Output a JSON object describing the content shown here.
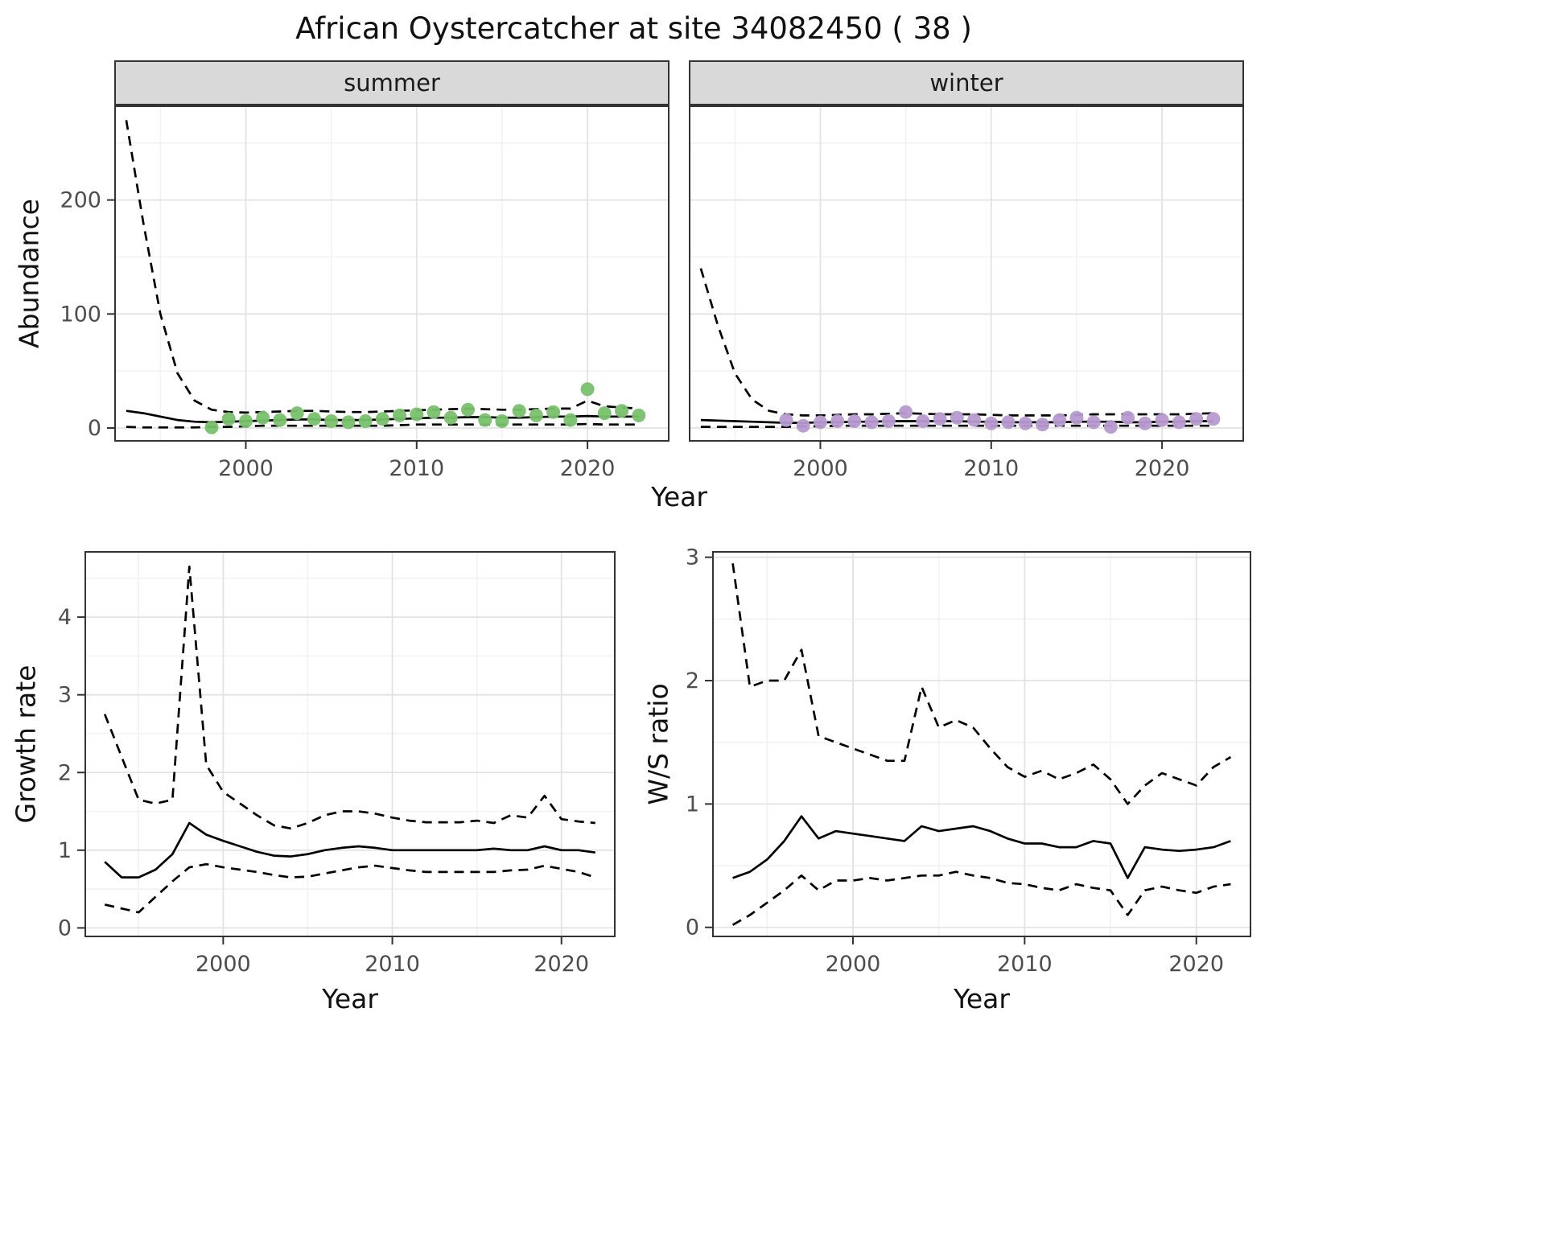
{
  "title": "African Oystercatcher at site 34082450 ( 38 )",
  "labels": {
    "year": "Year",
    "abundance": "Abundance",
    "growth": "Growth rate",
    "ws": "W/S ratio"
  },
  "facets": [
    "summer",
    "winter"
  ],
  "colors": {
    "summer_points": "#78c16c",
    "winter_points": "#b79ad1",
    "line": "#000000",
    "strip_bg": "#d9d9d9"
  },
  "chart_data": [
    {
      "id": "abundance-summer",
      "type": "line",
      "facet": "summer",
      "xlabel": "Year",
      "ylabel": "Abundance",
      "x_domain": [
        1992.3,
        2024.8
      ],
      "y_domain": [
        -12,
        283
      ],
      "x_ticks": [
        2000,
        2010,
        2020
      ],
      "y_ticks": [
        0,
        100,
        200
      ],
      "x_minor": [
        1995,
        2005,
        2015
      ],
      "y_minor": [
        50,
        150,
        250
      ],
      "show_y_labels": true,
      "series": [
        {
          "name": "upper_95ci",
          "style": "dashed",
          "x": [
            1993,
            1994,
            1995,
            1996,
            1997,
            1998,
            1999,
            2000,
            2001,
            2002,
            2003,
            2004,
            2005,
            2006,
            2007,
            2008,
            2009,
            2010,
            2011,
            2012,
            2013,
            2014,
            2015,
            2016,
            2017,
            2018,
            2019,
            2020,
            2021,
            2022,
            2023
          ],
          "y": [
            270,
            180,
            100,
            48,
            24,
            16,
            14,
            13.5,
            14,
            14.5,
            15,
            15,
            14.5,
            14,
            14,
            14.5,
            15,
            15.5,
            16,
            16.5,
            17,
            16.5,
            16,
            16,
            16.5,
            17,
            17,
            24,
            19,
            18,
            17
          ]
        },
        {
          "name": "modelled_fit",
          "style": "solid",
          "x": [
            1993,
            1994,
            1995,
            1996,
            1997,
            1998,
            1999,
            2000,
            2001,
            2002,
            2003,
            2004,
            2005,
            2006,
            2007,
            2008,
            2009,
            2010,
            2011,
            2012,
            2013,
            2014,
            2015,
            2016,
            2017,
            2018,
            2019,
            2020,
            2021,
            2022,
            2023
          ],
          "y": [
            15,
            13,
            10,
            7,
            5.5,
            5,
            5.5,
            6,
            6.5,
            7,
            7.5,
            7.5,
            7,
            7,
            7,
            7.5,
            8,
            8.5,
            9,
            9,
            9.5,
            9.5,
            9,
            9,
            9.5,
            10,
            10,
            10.5,
            10,
            10,
            10
          ]
        },
        {
          "name": "lower_95ci",
          "style": "dashed",
          "x": [
            1993,
            1994,
            1995,
            1996,
            1997,
            1998,
            1999,
            2000,
            2001,
            2002,
            2003,
            2004,
            2005,
            2006,
            2007,
            2008,
            2009,
            2010,
            2011,
            2012,
            2013,
            2014,
            2015,
            2016,
            2017,
            2018,
            2019,
            2020,
            2021,
            2022,
            2023
          ],
          "y": [
            1,
            0.5,
            0.5,
            0.5,
            0.5,
            1,
            1,
            1.5,
            2,
            2,
            2,
            2,
            2,
            2,
            2,
            2,
            2.5,
            3,
            3,
            3,
            3,
            3,
            3,
            3,
            3,
            3,
            3,
            3.5,
            3,
            3,
            3
          ]
        },
        {
          "name": "observed_counts",
          "style": "points",
          "color": "#78c16c",
          "x": [
            1998,
            1999,
            2000,
            2001,
            2002,
            2003,
            2004,
            2005,
            2006,
            2007,
            2008,
            2009,
            2010,
            2011,
            2012,
            2013,
            2014,
            2015,
            2016,
            2017,
            2018,
            2019,
            2020,
            2021,
            2022,
            2023
          ],
          "y": [
            0.5,
            8,
            6,
            9,
            7,
            13,
            8,
            6,
            5,
            6,
            8,
            11,
            12,
            14,
            9,
            16,
            7,
            6,
            15,
            11,
            14,
            7,
            34,
            13,
            15,
            11
          ]
        }
      ]
    },
    {
      "id": "abundance-winter",
      "type": "line",
      "facet": "winter",
      "xlabel": "Year",
      "ylabel": "Abundance",
      "x_domain": [
        1992.3,
        2024.8
      ],
      "y_domain": [
        -12,
        283
      ],
      "x_ticks": [
        2000,
        2010,
        2020
      ],
      "y_ticks": [
        0,
        100,
        200
      ],
      "x_minor": [
        1995,
        2005,
        2015
      ],
      "y_minor": [
        50,
        150,
        250
      ],
      "show_y_labels": false,
      "series": [
        {
          "name": "upper_95ci",
          "style": "dashed",
          "x": [
            1993,
            1994,
            1995,
            1996,
            1997,
            1998,
            1999,
            2000,
            2001,
            2002,
            2003,
            2004,
            2005,
            2006,
            2007,
            2008,
            2009,
            2010,
            2011,
            2012,
            2013,
            2014,
            2015,
            2016,
            2017,
            2018,
            2019,
            2020,
            2021,
            2022,
            2023
          ],
          "y": [
            140,
            90,
            48,
            25,
            15,
            12,
            11,
            11,
            11.5,
            12,
            12,
            12.5,
            13,
            12.5,
            12,
            12,
            12,
            11.5,
            11,
            11,
            11,
            11,
            11.5,
            12,
            12,
            12,
            12,
            12,
            12,
            12.5,
            13
          ]
        },
        {
          "name": "modelled_fit",
          "style": "solid",
          "x": [
            1993,
            1994,
            1995,
            1996,
            1997,
            1998,
            1999,
            2000,
            2001,
            2002,
            2003,
            2004,
            2005,
            2006,
            2007,
            2008,
            2009,
            2010,
            2011,
            2012,
            2013,
            2014,
            2015,
            2016,
            2017,
            2018,
            2019,
            2020,
            2021,
            2022,
            2023
          ],
          "y": [
            7,
            6.5,
            6,
            5.5,
            5,
            4.5,
            4.5,
            5,
            5,
            5.5,
            5.5,
            6,
            6,
            6,
            6,
            6,
            5.5,
            5.5,
            5,
            5,
            5,
            5,
            5.5,
            5.5,
            5.5,
            5,
            5,
            5.5,
            5.5,
            6,
            6
          ]
        },
        {
          "name": "lower_95ci",
          "style": "dashed",
          "x": [
            1993,
            1994,
            1995,
            1996,
            1997,
            1998,
            1999,
            2000,
            2001,
            2002,
            2003,
            2004,
            2005,
            2006,
            2007,
            2008,
            2009,
            2010,
            2011,
            2012,
            2013,
            2014,
            2015,
            2016,
            2017,
            2018,
            2019,
            2020,
            2021,
            2022,
            2023
          ],
          "y": [
            1,
            1,
            1,
            1,
            1,
            1,
            1.5,
            1.5,
            2,
            2,
            2,
            2,
            2,
            2,
            2,
            2,
            2,
            2,
            2,
            2,
            2,
            2,
            2,
            2,
            2,
            2,
            2,
            2,
            2,
            2,
            2
          ]
        },
        {
          "name": "observed_counts",
          "style": "points",
          "color": "#b79ad1",
          "x": [
            1998,
            1999,
            2000,
            2001,
            2002,
            2003,
            2004,
            2005,
            2006,
            2007,
            2008,
            2009,
            2010,
            2011,
            2012,
            2013,
            2014,
            2015,
            2016,
            2017,
            2018,
            2019,
            2020,
            2021,
            2022,
            2023
          ],
          "y": [
            7,
            2,
            5,
            6,
            6,
            5,
            6,
            14,
            6,
            8,
            9,
            7,
            4,
            5,
            4,
            3,
            7,
            9,
            5,
            1,
            9,
            4,
            7,
            5,
            8,
            8
          ]
        }
      ]
    },
    {
      "id": "growth-rate",
      "type": "line",
      "xlabel": "Year",
      "ylabel": "Growth rate",
      "x_domain": [
        1991.8,
        2023.2
      ],
      "y_domain": [
        -0.12,
        4.85
      ],
      "x_ticks": [
        2000,
        2010,
        2020
      ],
      "y_ticks": [
        0,
        1,
        2,
        3,
        4
      ],
      "x_minor": [
        1995,
        2005,
        2015
      ],
      "y_minor": [
        0.5,
        1.5,
        2.5,
        3.5,
        4.5
      ],
      "show_y_labels": true,
      "series": [
        {
          "name": "upper_95ci",
          "style": "dashed",
          "x": [
            1993,
            1994,
            1995,
            1996,
            1997,
            1998,
            1999,
            2000,
            2001,
            2002,
            2003,
            2004,
            2005,
            2006,
            2007,
            2008,
            2009,
            2010,
            2011,
            2012,
            2013,
            2014,
            2015,
            2016,
            2017,
            2018,
            2019,
            2020,
            2021,
            2022
          ],
          "y": [
            2.75,
            2.2,
            1.65,
            1.6,
            1.65,
            4.65,
            2.1,
            1.75,
            1.6,
            1.45,
            1.32,
            1.28,
            1.35,
            1.45,
            1.5,
            1.5,
            1.47,
            1.42,
            1.38,
            1.36,
            1.36,
            1.36,
            1.38,
            1.35,
            1.45,
            1.42,
            1.7,
            1.4,
            1.37,
            1.35
          ]
        },
        {
          "name": "modelled_fit",
          "style": "solid",
          "x": [
            1993,
            1994,
            1995,
            1996,
            1997,
            1998,
            1999,
            2000,
            2001,
            2002,
            2003,
            2004,
            2005,
            2006,
            2007,
            2008,
            2009,
            2010,
            2011,
            2012,
            2013,
            2014,
            2015,
            2016,
            2017,
            2018,
            2019,
            2020,
            2021,
            2022
          ],
          "y": [
            0.85,
            0.65,
            0.65,
            0.75,
            0.95,
            1.35,
            1.2,
            1.12,
            1.05,
            0.98,
            0.93,
            0.92,
            0.95,
            1.0,
            1.03,
            1.05,
            1.03,
            1.0,
            1.0,
            1.0,
            1.0,
            1.0,
            1.0,
            1.02,
            1.0,
            1.0,
            1.05,
            1.0,
            1.0,
            0.97
          ]
        },
        {
          "name": "lower_95ci",
          "style": "dashed",
          "x": [
            1993,
            1994,
            1995,
            1996,
            1997,
            1998,
            1999,
            2000,
            2001,
            2002,
            2003,
            2004,
            2005,
            2006,
            2007,
            2008,
            2009,
            2010,
            2011,
            2012,
            2013,
            2014,
            2015,
            2016,
            2017,
            2018,
            2019,
            2020,
            2021,
            2022
          ],
          "y": [
            0.3,
            0.25,
            0.2,
            0.4,
            0.6,
            0.78,
            0.82,
            0.78,
            0.75,
            0.72,
            0.68,
            0.65,
            0.66,
            0.7,
            0.74,
            0.78,
            0.8,
            0.77,
            0.74,
            0.72,
            0.72,
            0.72,
            0.72,
            0.72,
            0.74,
            0.75,
            0.8,
            0.76,
            0.72,
            0.65
          ]
        }
      ]
    },
    {
      "id": "ws-ratio",
      "type": "line",
      "xlabel": "Year",
      "ylabel": "W/S ratio",
      "x_domain": [
        1991.8,
        2023.2
      ],
      "y_domain": [
        -0.08,
        3.05
      ],
      "x_ticks": [
        2000,
        2010,
        2020
      ],
      "y_ticks": [
        0,
        1,
        2,
        3
      ],
      "x_minor": [
        1995,
        2005,
        2015
      ],
      "y_minor": [
        0.5,
        1.5,
        2.5
      ],
      "show_y_labels": true,
      "series": [
        {
          "name": "upper_95ci",
          "style": "dashed",
          "x": [
            1993,
            1994,
            1995,
            1996,
            1997,
            1998,
            1999,
            2000,
            2001,
            2002,
            2003,
            2004,
            2005,
            2006,
            2007,
            2008,
            2009,
            2010,
            2011,
            2012,
            2013,
            2014,
            2015,
            2016,
            2017,
            2018,
            2019,
            2020,
            2021,
            2022
          ],
          "y": [
            2.95,
            1.95,
            2.0,
            2.0,
            2.25,
            1.55,
            1.5,
            1.45,
            1.4,
            1.35,
            1.35,
            1.95,
            1.62,
            1.68,
            1.62,
            1.45,
            1.3,
            1.22,
            1.27,
            1.2,
            1.25,
            1.32,
            1.2,
            1.0,
            1.15,
            1.25,
            1.2,
            1.15,
            1.3,
            1.38
          ]
        },
        {
          "name": "modelled_fit",
          "style": "solid",
          "x": [
            1993,
            1994,
            1995,
            1996,
            1997,
            1998,
            1999,
            2000,
            2001,
            2002,
            2003,
            2004,
            2005,
            2006,
            2007,
            2008,
            2009,
            2010,
            2011,
            2012,
            2013,
            2014,
            2015,
            2016,
            2017,
            2018,
            2019,
            2020,
            2021,
            2022
          ],
          "y": [
            0.4,
            0.45,
            0.55,
            0.7,
            0.9,
            0.72,
            0.78,
            0.76,
            0.74,
            0.72,
            0.7,
            0.82,
            0.78,
            0.8,
            0.82,
            0.78,
            0.72,
            0.68,
            0.68,
            0.65,
            0.65,
            0.7,
            0.68,
            0.4,
            0.65,
            0.63,
            0.62,
            0.63,
            0.65,
            0.7
          ]
        },
        {
          "name": "lower_95ci",
          "style": "dashed",
          "x": [
            1993,
            1994,
            1995,
            1996,
            1997,
            1998,
            1999,
            2000,
            2001,
            2002,
            2003,
            2004,
            2005,
            2006,
            2007,
            2008,
            2009,
            2010,
            2011,
            2012,
            2013,
            2014,
            2015,
            2016,
            2017,
            2018,
            2019,
            2020,
            2021,
            2022
          ],
          "y": [
            0.02,
            0.1,
            0.2,
            0.3,
            0.42,
            0.3,
            0.38,
            0.38,
            0.4,
            0.38,
            0.4,
            0.42,
            0.42,
            0.45,
            0.42,
            0.4,
            0.36,
            0.35,
            0.32,
            0.3,
            0.35,
            0.32,
            0.3,
            0.1,
            0.3,
            0.33,
            0.3,
            0.28,
            0.33,
            0.35
          ]
        }
      ]
    }
  ]
}
